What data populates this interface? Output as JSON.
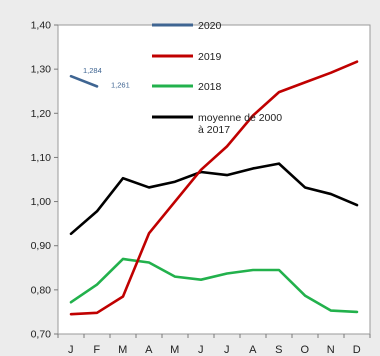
{
  "chart_data": {
    "type": "line",
    "categories": [
      "J",
      "F",
      "M",
      "A",
      "M",
      "J",
      "J",
      "A",
      "S",
      "O",
      "N",
      "D"
    ],
    "ylim": [
      0.7,
      1.4
    ],
    "yticks": [
      "0,70",
      "0,80",
      "0,90",
      "1,00",
      "1,10",
      "1,20",
      "1,30",
      "1,40"
    ],
    "grid": false,
    "legend_position": "top-center",
    "series": [
      {
        "name": "2020",
        "color": "#3f6592",
        "values": [
          1.284,
          1.261,
          null,
          null,
          null,
          null,
          null,
          null,
          null,
          null,
          null,
          null
        ],
        "labels": [
          "1,284",
          "1,261"
        ]
      },
      {
        "name": "2019",
        "color": "#c00000",
        "values": [
          0.745,
          0.748,
          0.785,
          0.928,
          1.0,
          1.072,
          1.125,
          1.195,
          1.248,
          1.27,
          1.292,
          1.317
        ]
      },
      {
        "name": "2018",
        "color": "#22b14c",
        "values": [
          0.772,
          0.812,
          0.87,
          0.862,
          0.83,
          0.823,
          0.837,
          0.845,
          0.845,
          0.787,
          0.753,
          0.75
        ]
      },
      {
        "name_lines": [
          "moyenne de 2000",
          "à 2017"
        ],
        "color": "#000000",
        "values": [
          0.927,
          0.978,
          1.053,
          1.032,
          1.045,
          1.067,
          1.06,
          1.075,
          1.086,
          1.032,
          1.017,
          0.992
        ]
      }
    ]
  }
}
